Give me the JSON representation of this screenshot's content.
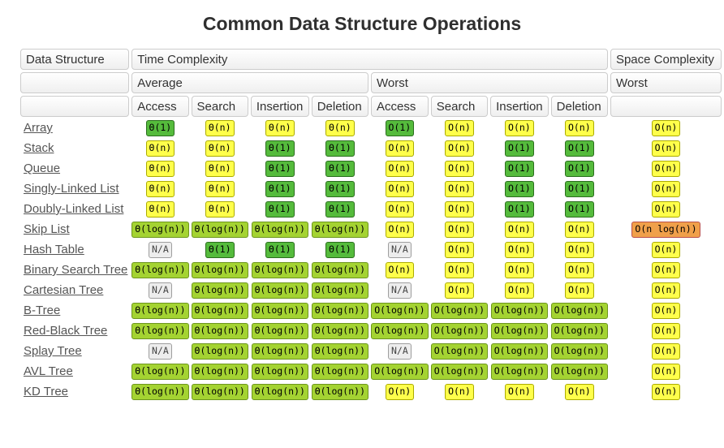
{
  "title": "Common Data Structure Operations",
  "colors": {
    "excellent_bg": "#55BB3C",
    "good_bg": "#A4D332",
    "fair_bg": "#FFFF4B",
    "bad_bg": "#F0A04A",
    "na_bg": "#EDEDED",
    "header_border": "#cccccc",
    "link_text": "#555555"
  },
  "table": {
    "header": {
      "data_structure": "Data Structure",
      "time_complexity": "Time Complexity",
      "space_complexity": "Space Complexity",
      "average": "Average",
      "worst": "Worst",
      "space_worst": "Worst",
      "avg_ops": [
        "Access",
        "Search",
        "Insertion",
        "Deletion"
      ],
      "worst_ops": [
        "Access",
        "Search",
        "Insertion",
        "Deletion"
      ]
    },
    "rows": [
      {
        "name": "Array",
        "cells": [
          {
            "text": "Θ(1)",
            "tone": "excellent"
          },
          {
            "text": "Θ(n)",
            "tone": "fair"
          },
          {
            "text": "Θ(n)",
            "tone": "fair"
          },
          {
            "text": "Θ(n)",
            "tone": "fair"
          },
          {
            "text": "O(1)",
            "tone": "excellent"
          },
          {
            "text": "O(n)",
            "tone": "fair"
          },
          {
            "text": "O(n)",
            "tone": "fair"
          },
          {
            "text": "O(n)",
            "tone": "fair"
          },
          {
            "text": "O(n)",
            "tone": "fair"
          }
        ]
      },
      {
        "name": "Stack",
        "cells": [
          {
            "text": "Θ(n)",
            "tone": "fair"
          },
          {
            "text": "Θ(n)",
            "tone": "fair"
          },
          {
            "text": "Θ(1)",
            "tone": "excellent"
          },
          {
            "text": "Θ(1)",
            "tone": "excellent"
          },
          {
            "text": "O(n)",
            "tone": "fair"
          },
          {
            "text": "O(n)",
            "tone": "fair"
          },
          {
            "text": "O(1)",
            "tone": "excellent"
          },
          {
            "text": "O(1)",
            "tone": "excellent"
          },
          {
            "text": "O(n)",
            "tone": "fair"
          }
        ]
      },
      {
        "name": "Queue",
        "cells": [
          {
            "text": "Θ(n)",
            "tone": "fair"
          },
          {
            "text": "Θ(n)",
            "tone": "fair"
          },
          {
            "text": "Θ(1)",
            "tone": "excellent"
          },
          {
            "text": "Θ(1)",
            "tone": "excellent"
          },
          {
            "text": "O(n)",
            "tone": "fair"
          },
          {
            "text": "O(n)",
            "tone": "fair"
          },
          {
            "text": "O(1)",
            "tone": "excellent"
          },
          {
            "text": "O(1)",
            "tone": "excellent"
          },
          {
            "text": "O(n)",
            "tone": "fair"
          }
        ]
      },
      {
        "name": "Singly-Linked List",
        "cells": [
          {
            "text": "Θ(n)",
            "tone": "fair"
          },
          {
            "text": "Θ(n)",
            "tone": "fair"
          },
          {
            "text": "Θ(1)",
            "tone": "excellent"
          },
          {
            "text": "Θ(1)",
            "tone": "excellent"
          },
          {
            "text": "O(n)",
            "tone": "fair"
          },
          {
            "text": "O(n)",
            "tone": "fair"
          },
          {
            "text": "O(1)",
            "tone": "excellent"
          },
          {
            "text": "O(1)",
            "tone": "excellent"
          },
          {
            "text": "O(n)",
            "tone": "fair"
          }
        ]
      },
      {
        "name": "Doubly-Linked List",
        "cells": [
          {
            "text": "Θ(n)",
            "tone": "fair"
          },
          {
            "text": "Θ(n)",
            "tone": "fair"
          },
          {
            "text": "Θ(1)",
            "tone": "excellent"
          },
          {
            "text": "Θ(1)",
            "tone": "excellent"
          },
          {
            "text": "O(n)",
            "tone": "fair"
          },
          {
            "text": "O(n)",
            "tone": "fair"
          },
          {
            "text": "O(1)",
            "tone": "excellent"
          },
          {
            "text": "O(1)",
            "tone": "excellent"
          },
          {
            "text": "O(n)",
            "tone": "fair"
          }
        ]
      },
      {
        "name": "Skip List",
        "cells": [
          {
            "text": "Θ(log(n))",
            "tone": "good"
          },
          {
            "text": "Θ(log(n))",
            "tone": "good"
          },
          {
            "text": "Θ(log(n))",
            "tone": "good"
          },
          {
            "text": "Θ(log(n))",
            "tone": "good"
          },
          {
            "text": "O(n)",
            "tone": "fair"
          },
          {
            "text": "O(n)",
            "tone": "fair"
          },
          {
            "text": "O(n)",
            "tone": "fair"
          },
          {
            "text": "O(n)",
            "tone": "fair"
          },
          {
            "text": "O(n log(n))",
            "tone": "bad"
          }
        ]
      },
      {
        "name": "Hash Table",
        "cells": [
          {
            "text": "N/A",
            "tone": "na"
          },
          {
            "text": "Θ(1)",
            "tone": "excellent"
          },
          {
            "text": "Θ(1)",
            "tone": "excellent"
          },
          {
            "text": "Θ(1)",
            "tone": "excellent"
          },
          {
            "text": "N/A",
            "tone": "na"
          },
          {
            "text": "O(n)",
            "tone": "fair"
          },
          {
            "text": "O(n)",
            "tone": "fair"
          },
          {
            "text": "O(n)",
            "tone": "fair"
          },
          {
            "text": "O(n)",
            "tone": "fair"
          }
        ]
      },
      {
        "name": "Binary Search Tree",
        "cells": [
          {
            "text": "Θ(log(n))",
            "tone": "good"
          },
          {
            "text": "Θ(log(n))",
            "tone": "good"
          },
          {
            "text": "Θ(log(n))",
            "tone": "good"
          },
          {
            "text": "Θ(log(n))",
            "tone": "good"
          },
          {
            "text": "O(n)",
            "tone": "fair"
          },
          {
            "text": "O(n)",
            "tone": "fair"
          },
          {
            "text": "O(n)",
            "tone": "fair"
          },
          {
            "text": "O(n)",
            "tone": "fair"
          },
          {
            "text": "O(n)",
            "tone": "fair"
          }
        ]
      },
      {
        "name": "Cartesian Tree",
        "cells": [
          {
            "text": "N/A",
            "tone": "na"
          },
          {
            "text": "Θ(log(n))",
            "tone": "good"
          },
          {
            "text": "Θ(log(n))",
            "tone": "good"
          },
          {
            "text": "Θ(log(n))",
            "tone": "good"
          },
          {
            "text": "N/A",
            "tone": "na"
          },
          {
            "text": "O(n)",
            "tone": "fair"
          },
          {
            "text": "O(n)",
            "tone": "fair"
          },
          {
            "text": "O(n)",
            "tone": "fair"
          },
          {
            "text": "O(n)",
            "tone": "fair"
          }
        ]
      },
      {
        "name": "B-Tree",
        "cells": [
          {
            "text": "Θ(log(n))",
            "tone": "good"
          },
          {
            "text": "Θ(log(n))",
            "tone": "good"
          },
          {
            "text": "Θ(log(n))",
            "tone": "good"
          },
          {
            "text": "Θ(log(n))",
            "tone": "good"
          },
          {
            "text": "O(log(n))",
            "tone": "good"
          },
          {
            "text": "O(log(n))",
            "tone": "good"
          },
          {
            "text": "O(log(n))",
            "tone": "good"
          },
          {
            "text": "O(log(n))",
            "tone": "good"
          },
          {
            "text": "O(n)",
            "tone": "fair"
          }
        ]
      },
      {
        "name": "Red-Black Tree",
        "cells": [
          {
            "text": "Θ(log(n))",
            "tone": "good"
          },
          {
            "text": "Θ(log(n))",
            "tone": "good"
          },
          {
            "text": "Θ(log(n))",
            "tone": "good"
          },
          {
            "text": "Θ(log(n))",
            "tone": "good"
          },
          {
            "text": "O(log(n))",
            "tone": "good"
          },
          {
            "text": "O(log(n))",
            "tone": "good"
          },
          {
            "text": "O(log(n))",
            "tone": "good"
          },
          {
            "text": "O(log(n))",
            "tone": "good"
          },
          {
            "text": "O(n)",
            "tone": "fair"
          }
        ]
      },
      {
        "name": "Splay Tree",
        "cells": [
          {
            "text": "N/A",
            "tone": "na"
          },
          {
            "text": "Θ(log(n))",
            "tone": "good"
          },
          {
            "text": "Θ(log(n))",
            "tone": "good"
          },
          {
            "text": "Θ(log(n))",
            "tone": "good"
          },
          {
            "text": "N/A",
            "tone": "na"
          },
          {
            "text": "O(log(n))",
            "tone": "good"
          },
          {
            "text": "O(log(n))",
            "tone": "good"
          },
          {
            "text": "O(log(n))",
            "tone": "good"
          },
          {
            "text": "O(n)",
            "tone": "fair"
          }
        ]
      },
      {
        "name": "AVL Tree",
        "cells": [
          {
            "text": "Θ(log(n))",
            "tone": "good"
          },
          {
            "text": "Θ(log(n))",
            "tone": "good"
          },
          {
            "text": "Θ(log(n))",
            "tone": "good"
          },
          {
            "text": "Θ(log(n))",
            "tone": "good"
          },
          {
            "text": "O(log(n))",
            "tone": "good"
          },
          {
            "text": "O(log(n))",
            "tone": "good"
          },
          {
            "text": "O(log(n))",
            "tone": "good"
          },
          {
            "text": "O(log(n))",
            "tone": "good"
          },
          {
            "text": "O(n)",
            "tone": "fair"
          }
        ]
      },
      {
        "name": "KD Tree",
        "cells": [
          {
            "text": "Θ(log(n))",
            "tone": "good"
          },
          {
            "text": "Θ(log(n))",
            "tone": "good"
          },
          {
            "text": "Θ(log(n))",
            "tone": "good"
          },
          {
            "text": "Θ(log(n))",
            "tone": "good"
          },
          {
            "text": "O(n)",
            "tone": "fair"
          },
          {
            "text": "O(n)",
            "tone": "fair"
          },
          {
            "text": "O(n)",
            "tone": "fair"
          },
          {
            "text": "O(n)",
            "tone": "fair"
          },
          {
            "text": "O(n)",
            "tone": "fair"
          }
        ]
      }
    ]
  }
}
